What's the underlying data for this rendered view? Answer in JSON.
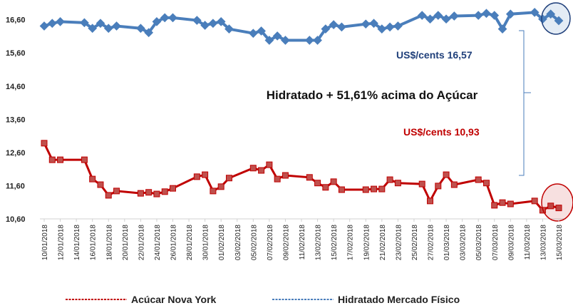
{
  "chart_data": {
    "type": "line",
    "x": [
      0,
      1,
      2,
      5,
      6,
      7,
      8,
      9,
      12,
      13,
      14,
      15,
      16,
      19,
      20,
      21,
      22,
      23,
      26,
      27,
      28,
      29,
      30,
      33,
      34,
      35,
      36,
      37,
      40,
      41,
      42,
      43,
      44,
      47,
      48,
      49,
      50,
      51,
      54,
      55,
      56,
      57,
      58,
      61,
      62,
      63,
      64
    ],
    "series": [
      {
        "name": "Acúcar Nova York",
        "color": "#c00000",
        "values": [
          12.88,
          12.38,
          12.38,
          12.38,
          11.8,
          11.63,
          11.31,
          11.44,
          11.37,
          11.4,
          11.35,
          11.42,
          11.52,
          11.87,
          11.93,
          11.44,
          11.57,
          11.83,
          12.13,
          12.06,
          12.23,
          11.8,
          11.91,
          11.85,
          11.68,
          11.55,
          11.72,
          11.48,
          11.48,
          11.5,
          11.5,
          11.78,
          11.68,
          11.65,
          11.14,
          11.59,
          11.93,
          11.63,
          11.78,
          11.68,
          11.01,
          11.09,
          11.05,
          11.14,
          10.86,
          10.99,
          10.93
        ]
      },
      {
        "name": "Hidratado  Mercado  Físico",
        "color": "#4a7ebb",
        "values": [
          16.41,
          16.49,
          16.54,
          16.51,
          16.34,
          16.49,
          16.34,
          16.41,
          16.34,
          16.21,
          16.54,
          16.66,
          16.66,
          16.58,
          16.43,
          16.49,
          16.54,
          16.32,
          16.19,
          16.26,
          15.98,
          16.11,
          15.98,
          15.98,
          15.98,
          16.32,
          16.45,
          16.38,
          16.47,
          16.49,
          16.32,
          16.38,
          16.41,
          16.73,
          16.62,
          16.73,
          16.62,
          16.71,
          16.73,
          16.79,
          16.73,
          16.32,
          16.77,
          16.82,
          16.62,
          16.77,
          16.57
        ]
      }
    ],
    "xlim": [
      0,
      64
    ],
    "xticks": [
      {
        "value": 0,
        "label": "10/01/2018"
      },
      {
        "value": 2,
        "label": "12/01/2018"
      },
      {
        "value": 4,
        "label": "14/01/2018"
      },
      {
        "value": 6,
        "label": "16/01/2018"
      },
      {
        "value": 8,
        "label": "18/01/2018"
      },
      {
        "value": 10,
        "label": "20/01/2018"
      },
      {
        "value": 12,
        "label": "22/01/2018"
      },
      {
        "value": 14,
        "label": "24/01/2018"
      },
      {
        "value": 16,
        "label": "26/01/2018"
      },
      {
        "value": 18,
        "label": "28/01/2018"
      },
      {
        "value": 20,
        "label": "30/01/2018"
      },
      {
        "value": 22,
        "label": "01/02/2018"
      },
      {
        "value": 24,
        "label": "03/02/2018"
      },
      {
        "value": 26,
        "label": "05/02/2018"
      },
      {
        "value": 28,
        "label": "07/02/2018"
      },
      {
        "value": 30,
        "label": "09/02/2018"
      },
      {
        "value": 32,
        "label": "11/02/2018"
      },
      {
        "value": 34,
        "label": "13/02/2018"
      },
      {
        "value": 36,
        "label": "15/02/2018"
      },
      {
        "value": 38,
        "label": "17/02/2018"
      },
      {
        "value": 40,
        "label": "19/02/2018"
      },
      {
        "value": 42,
        "label": "21/02/2018"
      },
      {
        "value": 44,
        "label": "23/02/2018"
      },
      {
        "value": 46,
        "label": "25/02/2018"
      },
      {
        "value": 48,
        "label": "27/02/2018"
      },
      {
        "value": 50,
        "label": "01/03/2018"
      },
      {
        "value": 52,
        "label": "03/03/2018"
      },
      {
        "value": 54,
        "label": "05/03/2018"
      },
      {
        "value": 56,
        "label": "07/03/2018"
      },
      {
        "value": 58,
        "label": "09/03/2018"
      },
      {
        "value": 60,
        "label": "11/03/2018"
      },
      {
        "value": 62,
        "label": "13/03/2018"
      },
      {
        "value": 64,
        "label": "15/03/2018"
      }
    ],
    "ylim": [
      10.6,
      17.0
    ],
    "yticks": [
      {
        "value": 10.6,
        "label": "10,60"
      },
      {
        "value": 11.6,
        "label": "11,60"
      },
      {
        "value": 12.6,
        "label": "12,60"
      },
      {
        "value": 13.6,
        "label": "13,60"
      },
      {
        "value": 14.6,
        "label": "14,60"
      },
      {
        "value": 15.6,
        "label": "15,60"
      },
      {
        "value": 16.6,
        "label": "16,60"
      }
    ],
    "annotations": [
      "US$/cents  16,57",
      "Hidratado + 51,61% acima do Açúcar",
      "US$/cents  10,93"
    ],
    "legend": "bottom"
  }
}
